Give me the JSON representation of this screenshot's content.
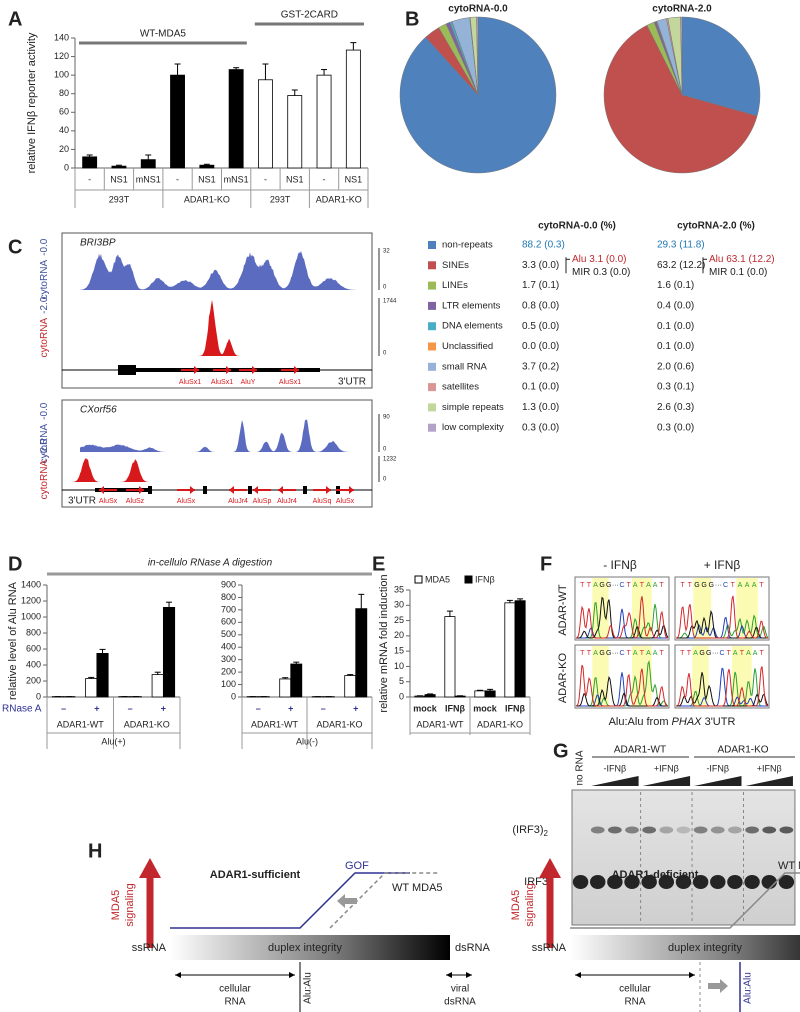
{
  "panel_labels": [
    "A",
    "B",
    "C",
    "D",
    "E",
    "F",
    "G",
    "H"
  ],
  "chart_data": [
    {
      "type": "bar",
      "ylabel": "relative IFNβ reporter activity",
      "ylim": [
        0,
        140
      ],
      "yticks": [
        0,
        20,
        40,
        60,
        80,
        100,
        120,
        140
      ],
      "series": [
        {
          "name": "WT-MDA5",
          "color": "#000000",
          "groups": [
            {
              "name": "293T",
              "categories": [
                "-",
                "NS1",
                "mNS1"
              ],
              "values": [
                12,
                2,
                9
              ],
              "errors": [
                2,
                1,
                5
              ]
            },
            {
              "name": "ADAR1-KO",
              "categories": [
                "-",
                "NS1",
                "mNS1"
              ],
              "values": [
                100,
                3,
                106
              ],
              "errors": [
                12,
                1,
                2
              ]
            }
          ]
        },
        {
          "name": "GST-2CARD",
          "color": "#ffffff",
          "groups": [
            {
              "name": "293T",
              "categories": [
                "-",
                "NS1"
              ],
              "values": [
                95,
                78
              ],
              "errors": [
                17,
                6
              ]
            },
            {
              "name": "ADAR1-KO",
              "categories": [
                "-",
                "NS1"
              ],
              "values": [
                100,
                127
              ],
              "errors": [
                6,
                8
              ]
            }
          ]
        }
      ]
    },
    {
      "type": "pie",
      "title": "cytoRNA-0.0",
      "categories": [
        "non-repeats",
        "SINEs",
        "LINEs",
        "LTR elements",
        "DNA elements",
        "Unclassified",
        "small RNA",
        "satellites",
        "simple repeats",
        "low complexity"
      ],
      "colors": [
        "#4f81bd",
        "#c0504d",
        "#9bbb59",
        "#8064a2",
        "#4bacc6",
        "#f79646",
        "#95b3d7",
        "#d99694",
        "#c3d69b",
        "#b3a2c7"
      ],
      "values": [
        88.2,
        3.3,
        1.7,
        0.8,
        0.5,
        0.0,
        3.7,
        0.1,
        1.3,
        0.3
      ],
      "value_labels": [
        "88.2 (0.3)",
        "3.3 (0.0)",
        "1.7 (0.1)",
        "0.8 (0.0)",
        "0.5 (0.0)",
        "0.0 (0.0)",
        "3.7 (0.2)",
        "0.1 (0.0)",
        "1.3 (0.0)",
        "0.3 (0.0)"
      ]
    },
    {
      "type": "pie",
      "title": "cytoRNA-2.0",
      "categories": [
        "non-repeats",
        "SINEs",
        "LINEs",
        "LTR elements",
        "DNA elements",
        "Unclassified",
        "small RNA",
        "satellites",
        "simple repeats",
        "low complexity"
      ],
      "colors": [
        "#4f81bd",
        "#c0504d",
        "#9bbb59",
        "#8064a2",
        "#4bacc6",
        "#f79646",
        "#95b3d7",
        "#d99694",
        "#c3d69b",
        "#b3a2c7"
      ],
      "values": [
        29.3,
        63.2,
        1.6,
        0.4,
        0.1,
        0.1,
        2.0,
        0.3,
        2.6,
        0.3
      ],
      "value_labels": [
        "29.3 (11.8)",
        "63.2 (12.2)",
        "1.6 (0.1)",
        "0.4 (0.0)",
        "0.1 (0.0)",
        "0.1 (0.0)",
        "2.0 (0.6)",
        "0.3 (0.1)",
        "2.6 (0.3)",
        "0.3 (0.0)"
      ]
    },
    {
      "type": "bar",
      "ylabel": "relative level of Alu RNA",
      "title": "Alu(+)",
      "category_label": "RNase A",
      "category_color": "#2e3192",
      "ylim": [
        0,
        1400
      ],
      "yticks": [
        0,
        200,
        400,
        600,
        800,
        1000,
        1200,
        1400
      ],
      "categories": [
        "–",
        "+",
        "–",
        "+"
      ],
      "groups": [
        "ADAR1-WT",
        "ADAR1-KO"
      ],
      "series": [
        {
          "color": "#ffffff",
          "values": [
            5,
            230,
            5,
            280
          ],
          "errors": [
            0,
            15,
            0,
            30
          ]
        },
        {
          "color": "#000000",
          "values": [
            5,
            545,
            5,
            1120
          ],
          "errors": [
            0,
            50,
            0,
            65
          ]
        }
      ]
    },
    {
      "type": "bar",
      "title": "Alu(-)",
      "category_color": "#2e3192",
      "ylim": [
        0,
        900
      ],
      "yticks": [
        0,
        100,
        200,
        300,
        400,
        500,
        600,
        700,
        800,
        900
      ],
      "categories": [
        "–",
        "+",
        "–",
        "+"
      ],
      "groups": [
        "ADAR1-WT",
        "ADAR1-KO"
      ],
      "series": [
        {
          "color": "#ffffff",
          "values": [
            3,
            145,
            3,
            172
          ],
          "errors": [
            0,
            10,
            0,
            8
          ]
        },
        {
          "color": "#000000",
          "values": [
            3,
            265,
            3,
            710
          ],
          "errors": [
            0,
            15,
            0,
            115
          ]
        }
      ]
    },
    {
      "type": "bar",
      "ylabel": "relative mRNA fold induction",
      "ylim": [
        0,
        35
      ],
      "yticks": [
        0,
        5,
        10,
        15,
        20,
        25,
        30,
        35
      ],
      "categories": [
        "mock",
        "IFNβ",
        "mock",
        "IFNβ"
      ],
      "groups": [
        "ADAR1-WT",
        "ADAR1-KO"
      ],
      "series": [
        {
          "name": "MDA5",
          "color": "#ffffff",
          "values": [
            0.3,
            26.3,
            2.0,
            30.8
          ],
          "errors": [
            0.1,
            1.8,
            0.2,
            0.8
          ]
        },
        {
          "name": "IFNβ",
          "color": "#000000",
          "values": [
            0.8,
            0.3,
            2.0,
            31.5
          ],
          "errors": [
            0.2,
            0.1,
            0.5,
            0.6
          ]
        }
      ]
    }
  ],
  "table": {
    "columns": [
      "cytoRNA-0.0 (%)",
      "cytoRNA-2.0 (%)"
    ],
    "sines_detail": [
      [
        "Alu 3.1 (0.0)",
        "MIR 0.3 (0.0)"
      ],
      [
        "Alu 63.1 (12.2)",
        "MIR 0.1 (0.0)"
      ]
    ]
  },
  "tracks": {
    "label": "cytoRNA",
    "conditions": [
      "-0.0",
      "-2.0"
    ],
    "genes": [
      {
        "name": "BRI3BP",
        "utr": "3'UTR",
        "scale": [
          "32",
          "0",
          "1744",
          "0"
        ],
        "elements": [
          "AluSx1",
          "AluSx1",
          "AluY",
          "AluSx1"
        ]
      },
      {
        "name": "CXorf56",
        "utr": "3'UTR",
        "scale": [
          "90",
          "0",
          "1232",
          "0"
        ],
        "elements": [
          "AluSx",
          "AluSz",
          "AluSx",
          "AluJr4",
          "AluSp",
          "AluJr4",
          "AluSq",
          "AluSx"
        ]
      }
    ]
  },
  "digestion_header": "in-cellulo RNase A digestion",
  "chromatogram": {
    "conditions": [
      "- IFNβ",
      "+ IFNβ"
    ],
    "cells": [
      "ADAR-WT",
      "ADAR-KO"
    ],
    "sequences": [
      [
        [
          "T",
          "T",
          "A",
          "G",
          "G",
          "···",
          "C",
          "T",
          "A",
          "T",
          "A",
          "A",
          "T"
        ],
        [
          "T",
          "T",
          "G",
          "G",
          "G",
          "···",
          "C",
          "T",
          "A",
          "A",
          "A",
          "T"
        ]
      ],
      [
        [
          "T",
          "T",
          "A",
          "G",
          "G",
          "···",
          "C",
          "T",
          "A",
          "T",
          "A",
          "A",
          "T"
        ],
        [
          "T",
          "T",
          "A",
          "G",
          "G",
          "···",
          "C",
          "T",
          "A",
          "T",
          "A",
          "A",
          "T"
        ]
      ]
    ],
    "caption_parts": [
      "Alu:Alu from ",
      "PHAX",
      " 3'UTR"
    ]
  },
  "gel": {
    "no_rna": "no RNA",
    "cells": [
      "ADAR1-WT",
      "ADAR1-KO"
    ],
    "conditions": [
      "-IFNβ",
      "+IFNβ"
    ],
    "dimer": {
      "text": "(IRF3)",
      "subscript": "2"
    },
    "monomer": "IRF3"
  },
  "model": {
    "titles": [
      "ADAR1-sufficient",
      "ADAR1-deficient"
    ],
    "signal": [
      "MDA5",
      "signaling"
    ],
    "axis": [
      "ssRNA",
      "duplex integrity",
      "dsRNA"
    ],
    "cellular": [
      "cellular",
      "RNA"
    ],
    "viral": [
      "viral",
      "dsRNA"
    ],
    "alu": "Alu:Alu",
    "wt": "WT MDA5",
    "gof": "GOF"
  }
}
